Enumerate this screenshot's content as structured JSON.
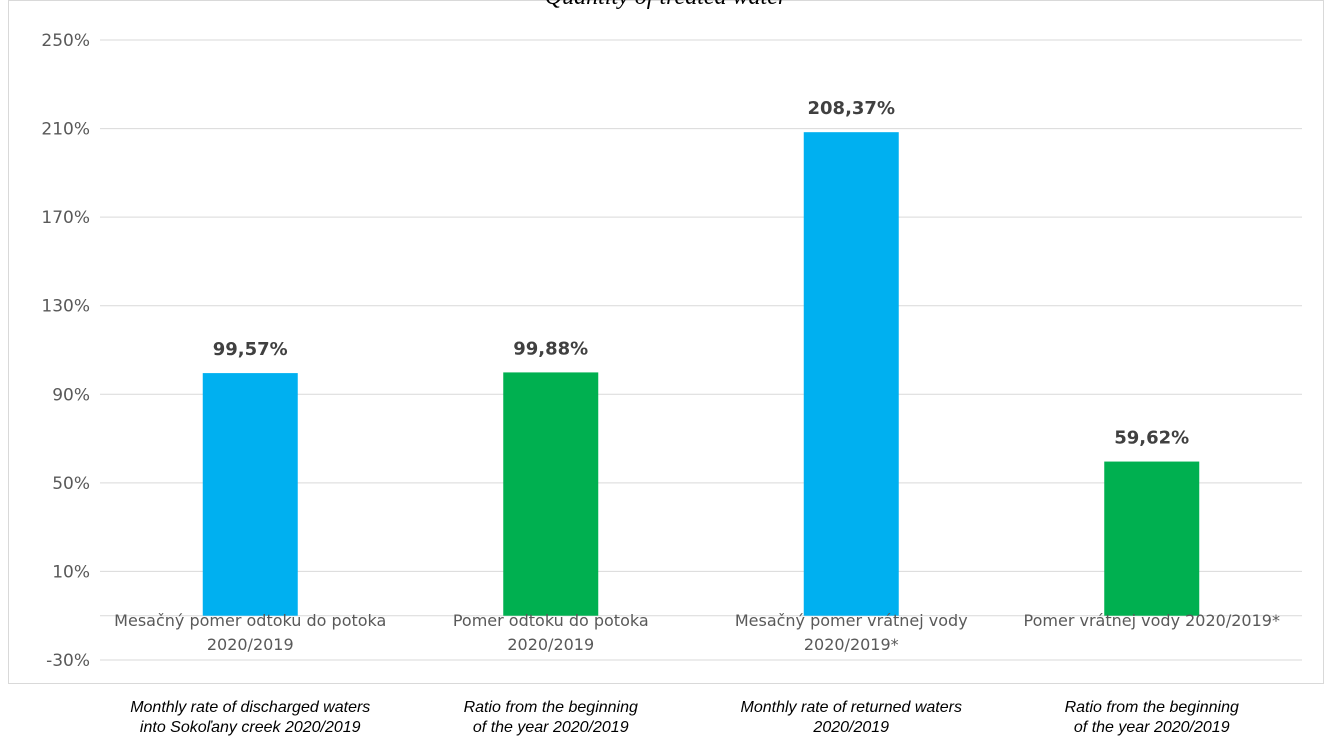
{
  "chart_data": {
    "type": "bar",
    "title": "Quantity of treated water",
    "categories": [
      [
        "Mesačný pomer odtoku do potoka",
        "2020/2019"
      ],
      [
        "Pomer odtoku do potoka",
        "2020/2019"
      ],
      [
        "Mesačný pomer vrátnej vody",
        "2020/2019*"
      ],
      [
        "Pomer vrátnej vody   2020/2019*"
      ]
    ],
    "values": [
      99.57,
      99.88,
      208.37,
      59.62
    ],
    "data_labels": [
      "99,57%",
      "99,88%",
      "208,37%",
      "59,62%"
    ],
    "bar_colors": [
      "#00B0F0",
      "#00B050",
      "#00B0F0",
      "#00B050"
    ],
    "ylim": [
      -30,
      250
    ],
    "yticks": [
      250,
      210,
      170,
      130,
      90,
      50,
      10,
      -30
    ],
    "ytick_labels": [
      "250%",
      "210%",
      "170%",
      "130%",
      "90%",
      "50%",
      "10%",
      "-30%"
    ],
    "bar_base": -10,
    "grid": true,
    "legend": "none",
    "english_captions": [
      [
        "Monthly rate of discharged waters",
        "into Sokoľany creek 2020/2019"
      ],
      [
        "Ratio from the beginning",
        "of the year 2020/2019"
      ],
      [
        "Monthly rate of returned waters",
        "2020/2019"
      ],
      [
        "Ratio from the beginning",
        "of the year 2020/2019"
      ]
    ]
  }
}
